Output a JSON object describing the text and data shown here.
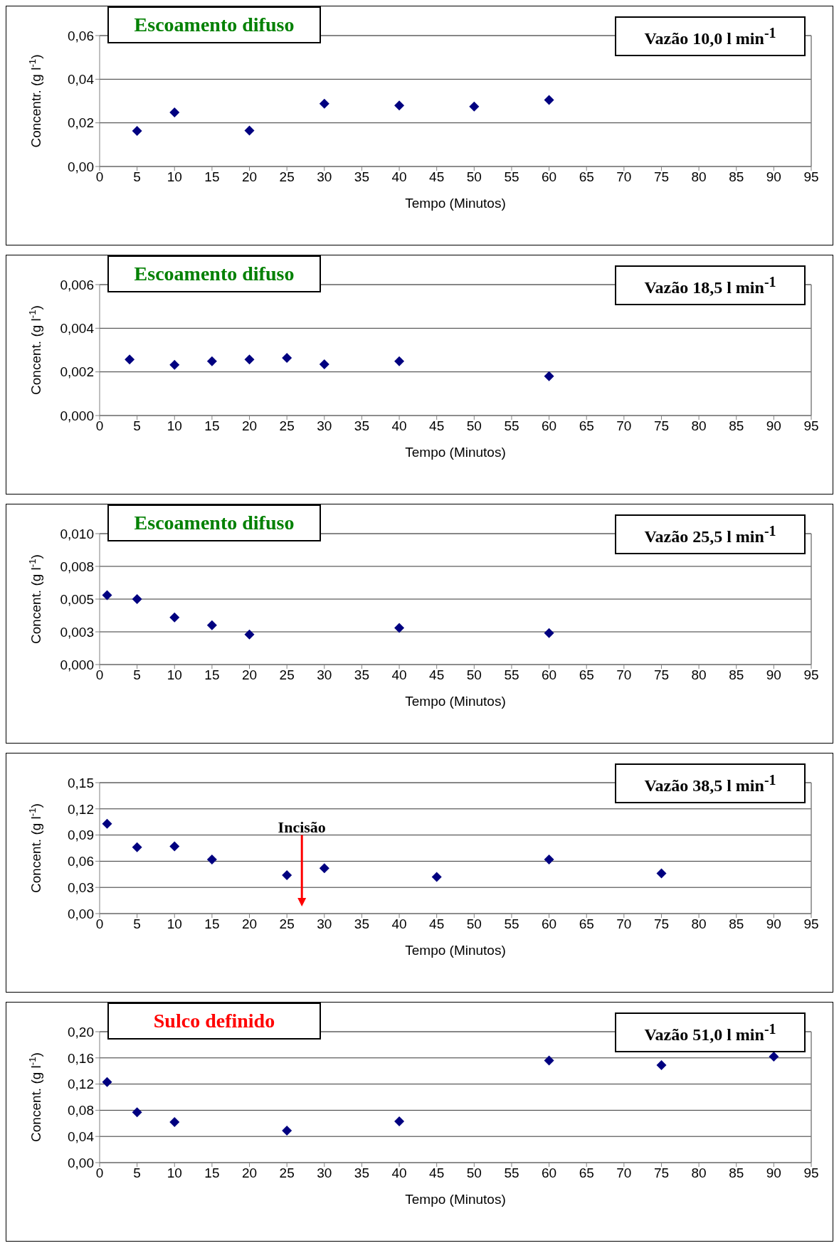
{
  "chart_data": [
    {
      "type": "scatter",
      "title": "Escoamento difuso",
      "subtitle": "Vazão 10,0 l min$^{-1}$",
      "xlabel": "Tempo (Minutos)",
      "ylabel": "Concentr. (g l$^{-1}$)",
      "x": [
        5,
        10,
        20,
        30,
        40,
        50,
        60
      ],
      "series": [
        {
          "color": "#000080",
          "values": [
            0.0163,
            0.0248,
            0.0165,
            0.0288,
            0.028,
            0.0275,
            0.0305
          ]
        }
      ],
      "xlim": [
        0,
        95
      ],
      "xticks": [
        0,
        5,
        10,
        15,
        20,
        25,
        30,
        35,
        40,
        45,
        50,
        55,
        60,
        65,
        70,
        75,
        80,
        85,
        90,
        95
      ],
      "ylim": [
        0,
        0.06
      ],
      "yticks": [
        {
          "value": 0,
          "label": "0,00"
        },
        {
          "value": 0.02,
          "label": "0,02"
        },
        {
          "value": 0.04,
          "label": "0,04"
        },
        {
          "value": 0.06,
          "label": "0,06"
        }
      ],
      "grid": "y",
      "marker": "diamond",
      "legend": false
    },
    {
      "type": "scatter",
      "title": "Escoamento difuso",
      "subtitle": "Vazão 18,5 l min$^{-1}$",
      "xlabel": "Tempo (Minutos)",
      "ylabel": "Concent. (g l$^{-1}$)",
      "x": [
        4,
        10,
        15,
        20,
        25,
        30,
        40,
        60
      ],
      "series": [
        {
          "color": "#000080",
          "values": [
            0.00257,
            0.00232,
            0.00249,
            0.00257,
            0.00264,
            0.00235,
            0.00249,
            0.0018
          ]
        }
      ],
      "xlim": [
        0,
        95
      ],
      "xticks": [
        0,
        5,
        10,
        15,
        20,
        25,
        30,
        35,
        40,
        45,
        50,
        55,
        60,
        65,
        70,
        75,
        80,
        85,
        90,
        95
      ],
      "ylim": [
        0,
        0.006
      ],
      "yticks": [
        {
          "value": 0,
          "label": "0,000"
        },
        {
          "value": 0.002,
          "label": "0,002"
        },
        {
          "value": 0.004,
          "label": "0,004"
        },
        {
          "value": 0.006,
          "label": "0,006"
        }
      ],
      "grid": "y",
      "marker": "diamond",
      "legend": false
    },
    {
      "type": "scatter",
      "title": "Escoamento difuso",
      "subtitle": "Vazão 25,5 l min$^{-1}$",
      "xlabel": "Tempo (Minutos)",
      "ylabel": "Concent. (g l$^{-1}$)",
      "x": [
        1,
        5,
        10,
        15,
        20,
        40,
        60
      ],
      "series": [
        {
          "color": "#000080",
          "values": [
            0.0053,
            0.005,
            0.0036,
            0.003,
            0.0023,
            0.0028,
            0.0024
          ]
        }
      ],
      "xlim": [
        0,
        95
      ],
      "xticks": [
        0,
        5,
        10,
        15,
        20,
        25,
        30,
        35,
        40,
        45,
        50,
        55,
        60,
        65,
        70,
        75,
        80,
        85,
        90,
        95
      ],
      "ylim": [
        0,
        0.01
      ],
      "yticks": [
        {
          "value": 0,
          "label": "0,000"
        },
        {
          "value": 0.0025,
          "label": "0,003"
        },
        {
          "value": 0.005,
          "label": "0,005"
        },
        {
          "value": 0.0075,
          "label": "0,008"
        },
        {
          "value": 0.01,
          "label": "0,010"
        }
      ],
      "grid": "y",
      "marker": "diamond",
      "legend": false
    },
    {
      "type": "scatter",
      "subtitle": "Vazão 38,5 l min$^{-1}$",
      "xlabel": "Tempo (Minutos)",
      "ylabel": "Concent. (g l$^{-1}$)",
      "x": [
        1,
        5,
        10,
        15,
        25,
        30,
        45,
        60,
        75
      ],
      "series": [
        {
          "color": "#000080",
          "values": [
            0.103,
            0.076,
            0.077,
            0.062,
            0.044,
            0.052,
            0.042,
            0.062,
            0.046
          ]
        }
      ],
      "xlim": [
        0,
        95
      ],
      "xticks": [
        0,
        5,
        10,
        15,
        20,
        25,
        30,
        35,
        40,
        45,
        50,
        55,
        60,
        65,
        70,
        75,
        80,
        85,
        90,
        95
      ],
      "ylim": [
        0,
        0.15
      ],
      "yticks": [
        {
          "value": 0,
          "label": "0,00"
        },
        {
          "value": 0.03,
          "label": "0,03"
        },
        {
          "value": 0.06,
          "label": "0,06"
        },
        {
          "value": 0.09,
          "label": "0,09"
        },
        {
          "value": 0.12,
          "label": "0,12"
        },
        {
          "value": 0.15,
          "label": "0,15"
        }
      ],
      "grid": "y",
      "marker": "diamond",
      "legend": false,
      "ref_lines": [
        {
          "axis": "x",
          "value": 27,
          "label": "Incisão",
          "color": "#ff0000"
        }
      ]
    },
    {
      "type": "scatter",
      "title": "Sulco definido",
      "subtitle": "Vazão 51,0 l min$^{-1}$",
      "xlabel": "Tempo (Minutos)",
      "ylabel": "Concent. (g l$^{-1}$)",
      "x": [
        1,
        5,
        10,
        25,
        40,
        60,
        75,
        90
      ],
      "series": [
        {
          "color": "#000080",
          "values": [
            0.123,
            0.077,
            0.062,
            0.049,
            0.063,
            0.156,
            0.149,
            0.162
          ]
        }
      ],
      "xlim": [
        0,
        95
      ],
      "xticks": [
        0,
        5,
        10,
        15,
        20,
        25,
        30,
        35,
        40,
        45,
        50,
        55,
        60,
        65,
        70,
        75,
        80,
        85,
        90,
        95
      ],
      "ylim": [
        0,
        0.2
      ],
      "yticks": [
        {
          "value": 0,
          "label": "0,00"
        },
        {
          "value": 0.04,
          "label": "0,04"
        },
        {
          "value": 0.08,
          "label": "0,08"
        },
        {
          "value": 0.12,
          "label": "0,12"
        },
        {
          "value": 0.16,
          "label": "0,16"
        },
        {
          "value": 0.2,
          "label": "0,20"
        }
      ],
      "grid": "y",
      "marker": "diamond",
      "legend": false
    }
  ]
}
